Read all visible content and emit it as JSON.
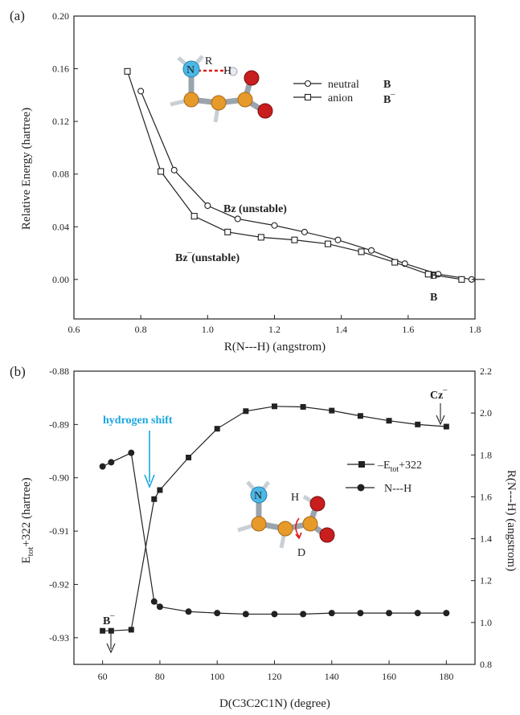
{
  "chart_data": [
    {
      "panel_label": "(a)",
      "type": "line",
      "xlabel": "R(N---H) (angstrom)",
      "ylabel": "Relative Energy (hartree)",
      "xlim": [
        0.6,
        1.8
      ],
      "ylim": [
        -0.03,
        0.2
      ],
      "xticks": [
        0.6,
        0.8,
        1.0,
        1.2,
        1.4,
        1.6,
        1.8
      ],
      "yticks": [
        0.0,
        0.04,
        0.08,
        0.12,
        0.16,
        0.2
      ],
      "xtick_labels": [
        "0.6",
        "0.8",
        "1.0",
        "1.2",
        "1.4",
        "1.6",
        "1.8"
      ],
      "ytick_labels": [
        "0.00",
        "0.04",
        "0.08",
        "0.12",
        "0.16",
        "0.20"
      ],
      "series": [
        {
          "name": "neutral",
          "name_bold": "B",
          "marker": "circle",
          "x": [
            0.8,
            0.9,
            1.0,
            1.09,
            1.2,
            1.29,
            1.39,
            1.49,
            1.59,
            1.69,
            1.79
          ],
          "y": [
            0.143,
            0.083,
            0.056,
            0.046,
            0.041,
            0.036,
            0.03,
            0.022,
            0.012,
            0.004,
            0.0
          ]
        },
        {
          "name": "anion",
          "name_bold": "B‾",
          "marker": "square",
          "x": [
            0.76,
            0.86,
            0.96,
            1.06,
            1.16,
            1.26,
            1.36,
            1.46,
            1.56,
            1.66,
            1.76
          ],
          "y": [
            0.158,
            0.082,
            0.048,
            0.036,
            0.032,
            0.03,
            0.027,
            0.021,
            0.013,
            0.004,
            0.0
          ]
        }
      ],
      "annotations": [
        {
          "text": "Bz (unstable)",
          "x": 1.22,
          "y": 0.058
        },
        {
          "text": "Bz‾(unstable)",
          "x": 1.04,
          "y": 0.018
        },
        {
          "text": "B",
          "x": 1.8,
          "y": 0.008
        },
        {
          "text": "B",
          "x": 1.8,
          "y": -0.008
        },
        {
          "text": "R",
          "x": 0.93,
          "y": 0.168
        },
        {
          "text": "N",
          "x": 0.87,
          "y": 0.16
        },
        {
          "text": "H",
          "x": 0.98,
          "y": 0.16
        }
      ],
      "legend_position": "top-right"
    },
    {
      "panel_label": "(b)",
      "type": "line",
      "xlabel": "D(C3C2C1N) (degree)",
      "ylabel_main": "E",
      "ylabel_sub": "tot",
      "ylabel_rest": "+322 (hartree)",
      "y2label": "R(N---H) (angstrom)",
      "xlim": [
        50,
        190
      ],
      "ylim": [
        -0.935,
        -0.88
      ],
      "y2lim": [
        0.8,
        2.2
      ],
      "xticks": [
        60,
        80,
        100,
        120,
        140,
        160,
        180
      ],
      "yticks": [
        -0.93,
        -0.92,
        -0.91,
        -0.9,
        -0.89,
        -0.88
      ],
      "y2ticks": [
        0.8,
        1.0,
        1.2,
        1.4,
        1.6,
        1.8,
        2.0,
        2.2
      ],
      "xtick_labels": [
        "60",
        "80",
        "100",
        "120",
        "140",
        "160",
        "180"
      ],
      "ytick_labels": [
        "-0.93",
        "-0.92",
        "-0.91",
        "-0.90",
        "-0.89",
        "-0.88"
      ],
      "y2tick_labels": [
        "0.8",
        "1.0",
        "1.2",
        "1.4",
        "1.6",
        "1.8",
        "2.0",
        "2.2"
      ],
      "series": [
        {
          "name_main": "E",
          "name_sub": "tot",
          "name_rest": "+322",
          "marker": "square",
          "axis": "left",
          "x": [
            60,
            63,
            70,
            78,
            80,
            90,
            100,
            110,
            120,
            130,
            140,
            150,
            160,
            170,
            180
          ],
          "y": [
            -0.9287,
            -0.9287,
            -0.9285,
            -0.904,
            -0.9023,
            -0.8962,
            -0.8908,
            -0.8875,
            -0.8866,
            -0.8867,
            -0.8874,
            -0.8884,
            -0.8893,
            -0.89,
            -0.8904
          ]
        },
        {
          "name": "N---H",
          "marker": "circle",
          "axis": "right",
          "x": [
            60,
            63,
            70,
            78,
            80,
            90,
            100,
            110,
            120,
            130,
            140,
            150,
            160,
            170,
            180
          ],
          "y": [
            1.745,
            1.765,
            1.81,
            1.1,
            1.075,
            1.052,
            1.045,
            1.04,
            1.04,
            1.04,
            1.045,
            1.045,
            1.045,
            1.045,
            1.045
          ]
        }
      ],
      "annotations": [
        {
          "text": "hydrogen shift",
          "color": "#1aa7e0"
        },
        {
          "text": "Cz‾",
          "bold": true
        },
        {
          "text": "B‾",
          "bold": true
        },
        {
          "text": "N"
        },
        {
          "text": "H"
        },
        {
          "text": "D"
        }
      ],
      "legend_position": "center-right"
    }
  ]
}
